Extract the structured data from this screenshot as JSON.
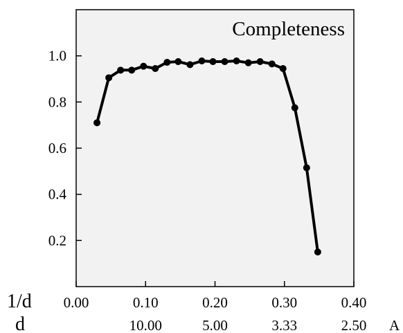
{
  "chart_data": {
    "type": "line",
    "title": "Completeness",
    "x_primary_label": "1/d",
    "x_secondary_label": "d",
    "x_secondary_unit": "A",
    "xlim": [
      0.0,
      0.4
    ],
    "ylim": [
      0.0,
      1.2
    ],
    "x_ticks": [
      0.0,
      0.1,
      0.2,
      0.3,
      0.4
    ],
    "x_tick_labels": [
      "0.00",
      "0.10",
      "0.20",
      "0.30",
      "0.40"
    ],
    "x_secondary_ticks": [
      0.1,
      0.2,
      0.3,
      0.4
    ],
    "x_secondary_tick_labels": [
      "10.00",
      "5.00",
      "3.33",
      "2.50"
    ],
    "y_ticks": [
      0.2,
      0.4,
      0.6,
      0.8,
      1.0
    ],
    "y_tick_labels": [
      "0.2",
      "0.4",
      "0.6",
      "0.8",
      "1.0"
    ],
    "grid": false,
    "series": [
      {
        "x": [
          0.03,
          0.047,
          0.064,
          0.08,
          0.097,
          0.114,
          0.131,
          0.147,
          0.164,
          0.181,
          0.197,
          0.214,
          0.231,
          0.248,
          0.265,
          0.282,
          0.298,
          0.315,
          0.332,
          0.348
        ],
        "y": [
          0.71,
          0.905,
          0.938,
          0.938,
          0.955,
          0.945,
          0.972,
          0.975,
          0.962,
          0.978,
          0.975,
          0.975,
          0.978,
          0.97,
          0.975,
          0.965,
          0.945,
          0.775,
          0.515,
          0.15
        ]
      }
    ]
  }
}
